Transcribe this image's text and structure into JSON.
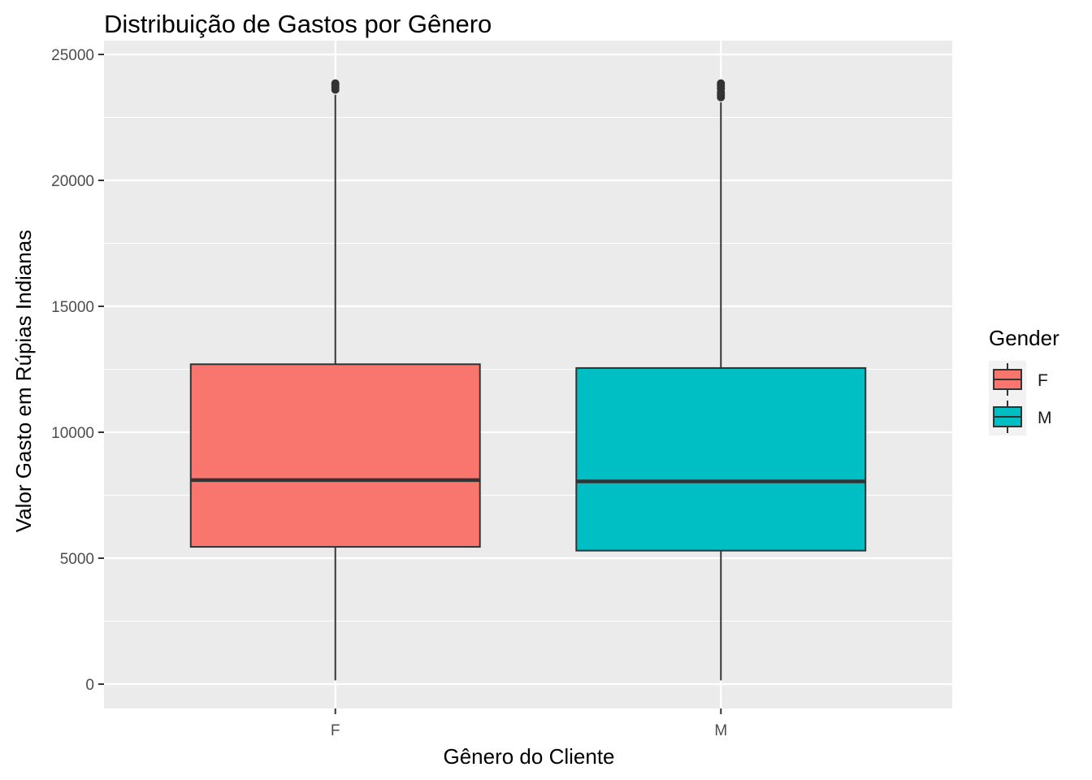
{
  "chart_data": {
    "type": "box",
    "title": "Distribuição de Gastos por Gênero",
    "xlabel": "Gênero do Cliente",
    "ylabel": "Valor Gasto em Rúpias Indianas",
    "ylim": [
      -1000,
      26000
    ],
    "y_ticks": [
      0,
      5000,
      10000,
      15000,
      20000,
      25000
    ],
    "y_tick_labels": [
      "0",
      "5000",
      "10000",
      "15000",
      "20000",
      "25000"
    ],
    "grid": true,
    "legend": {
      "title": "Gender",
      "position": "right"
    },
    "categories": [
      "F",
      "M"
    ],
    "series": [
      {
        "name": "F",
        "color": "#F8766D",
        "min": 150,
        "q1": 5450,
        "median": 8100,
        "q3": 12700,
        "max": 23400,
        "outliers": [
          23600,
          23700,
          23800,
          23850
        ]
      },
      {
        "name": "M",
        "color": "#00BFC4",
        "min": 150,
        "q1": 5300,
        "median": 8050,
        "q3": 12550,
        "max": 23100,
        "outliers": [
          23300,
          23400,
          23500,
          23650,
          23750,
          23850
        ]
      }
    ]
  }
}
